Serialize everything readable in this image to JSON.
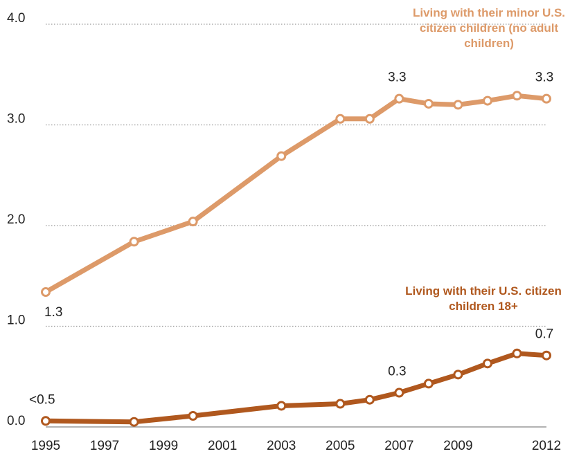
{
  "chart_data": {
    "type": "line",
    "x": [
      1995,
      1998,
      2000,
      2003,
      2005,
      2006,
      2007,
      2008,
      2009,
      2010,
      2011,
      2012
    ],
    "series": [
      {
        "name": "Living with their minor U.S. citizen children (no adult children)",
        "color": "#dd9a69",
        "values": [
          1.34,
          1.84,
          2.04,
          2.69,
          3.06,
          3.06,
          3.26,
          3.21,
          3.2,
          3.24,
          3.29,
          3.26
        ],
        "value_labels": [
          "1.3",
          null,
          null,
          null,
          null,
          null,
          "3.3",
          null,
          null,
          null,
          null,
          "3.3"
        ]
      },
      {
        "name": "Living with their U.S. citizen children 18+",
        "color": "#b0581e",
        "values": [
          0.06,
          0.05,
          0.11,
          0.21,
          0.23,
          0.27,
          0.34,
          0.43,
          0.52,
          0.63,
          0.73,
          0.71
        ],
        "value_labels": [
          "<0.5",
          null,
          null,
          null,
          null,
          null,
          "0.3",
          null,
          null,
          null,
          null,
          "0.7"
        ]
      }
    ],
    "xlim": [
      1995,
      2012
    ],
    "xticks": [
      1995,
      1997,
      1999,
      2001,
      2003,
      2005,
      2007,
      2009,
      2012
    ],
    "ylim": [
      0,
      4
    ],
    "yticks": [
      {
        "value": 0,
        "label": "0.0"
      },
      {
        "value": 1,
        "label": "1.0"
      },
      {
        "value": 2,
        "label": "2.0"
      },
      {
        "value": 3,
        "label": "3.0"
      },
      {
        "value": 4,
        "label": "4.0"
      }
    ],
    "grid": true
  }
}
